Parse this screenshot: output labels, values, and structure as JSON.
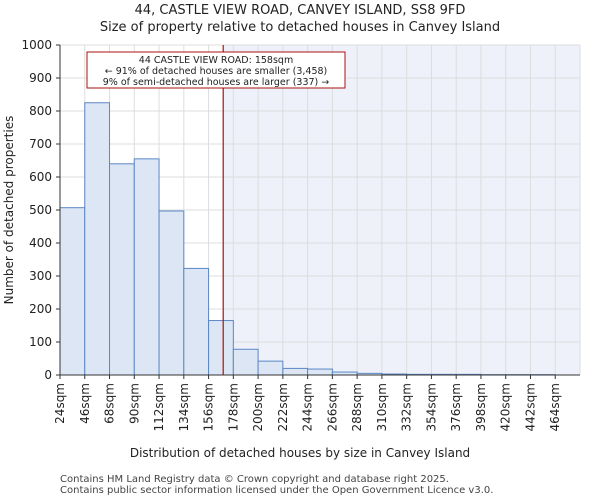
{
  "header": {
    "title_line1": "44, CASTLE VIEW ROAD, CANVEY ISLAND, SS8 9FD",
    "title_line2": "Size of property relative to detached houses in Canvey Island"
  },
  "footer": {
    "line1": "Contains HM Land Registry data © Crown copyright and database right 2025.",
    "line2": "Contains public sector information licensed under the Open Government Licence v3.0."
  },
  "chart_data": {
    "type": "bar",
    "title": "Size of property relative to detached houses in Canvey Island",
    "xlabel": "Distribution of detached houses by size in Canvey Island",
    "ylabel": "Number of detached properties",
    "ylim": [
      0,
      1000
    ],
    "yticks": [
      0,
      100,
      200,
      300,
      400,
      500,
      600,
      700,
      800,
      900,
      1000
    ],
    "categories": [
      "24sqm",
      "46sqm",
      "68sqm",
      "90sqm",
      "112sqm",
      "134sqm",
      "156sqm",
      "178sqm",
      "200sqm",
      "222sqm",
      "244sqm",
      "266sqm",
      "288sqm",
      "310sqm",
      "332sqm",
      "354sqm",
      "376sqm",
      "398sqm",
      "420sqm",
      "442sqm",
      "464sqm"
    ],
    "values": [
      507,
      825,
      640,
      655,
      497,
      323,
      165,
      78,
      42,
      20,
      18,
      9,
      5,
      3,
      2,
      2,
      2,
      1,
      1,
      1,
      0
    ],
    "property_value_sqm": 158,
    "annotation": {
      "line1": "44 CASTLE VIEW ROAD: 158sqm",
      "line2": "← 91% of detached houses are smaller (3,458)",
      "line3": "9% of semi-detached houses are larger (337) →"
    },
    "colors": {
      "bar_fill": "#dce6f4",
      "bar_stroke": "#5b87c5",
      "highlight_bg": "#eef1fa",
      "marker_line": "#aa1111",
      "grid": "#dddddd"
    }
  }
}
